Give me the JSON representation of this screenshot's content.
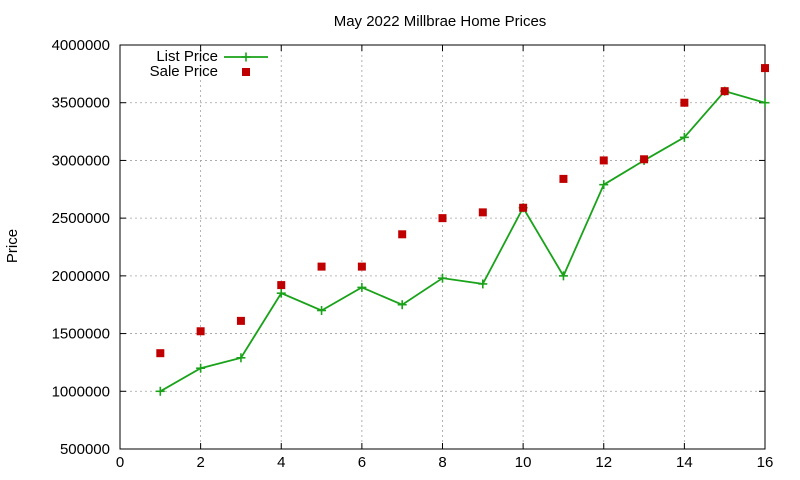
{
  "chart_data": {
    "type": "line",
    "title": "May 2022 Millbrae Home Prices",
    "xlabel": "",
    "ylabel": "Price",
    "xlim": [
      0,
      16
    ],
    "ylim": [
      500000,
      4000000
    ],
    "xticks": [
      "0",
      "2",
      "4",
      "6",
      "8",
      "10",
      "12",
      "14",
      "16"
    ],
    "yticks": [
      "500000",
      "1000000",
      "1500000",
      "2000000",
      "2500000",
      "3000000",
      "3500000",
      "4000000"
    ],
    "grid": true,
    "legend_position": "top-left",
    "series": [
      {
        "name": "List Price",
        "style": "line-with-plus-markers",
        "color": "#1aa31a",
        "points": [
          [
            1,
            1000000
          ],
          [
            2,
            1200000
          ],
          [
            3,
            1290000
          ],
          [
            4,
            1850000
          ],
          [
            5,
            1700000
          ],
          [
            6,
            1900000
          ],
          [
            7,
            1750000
          ],
          [
            8,
            1980000
          ],
          [
            9,
            1930000
          ],
          [
            10,
            2590000
          ],
          [
            11,
            2000000
          ],
          [
            12,
            2790000
          ],
          [
            13,
            3000000
          ],
          [
            14,
            3200000
          ],
          [
            15,
            3600000
          ],
          [
            16,
            3500000
          ]
        ]
      },
      {
        "name": "Sale Price",
        "style": "square-markers",
        "color": "#c00000",
        "points": [
          [
            1,
            1330000
          ],
          [
            2,
            1520000
          ],
          [
            3,
            1610000
          ],
          [
            4,
            1920000
          ],
          [
            5,
            2080000
          ],
          [
            6,
            2080000
          ],
          [
            7,
            2360000
          ],
          [
            8,
            2500000
          ],
          [
            9,
            2550000
          ],
          [
            10,
            2590000
          ],
          [
            11,
            2840000
          ],
          [
            12,
            3000000
          ],
          [
            13,
            3010000
          ],
          [
            14,
            3500000
          ],
          [
            15,
            3600000
          ],
          [
            16,
            3800000
          ]
        ]
      }
    ]
  }
}
